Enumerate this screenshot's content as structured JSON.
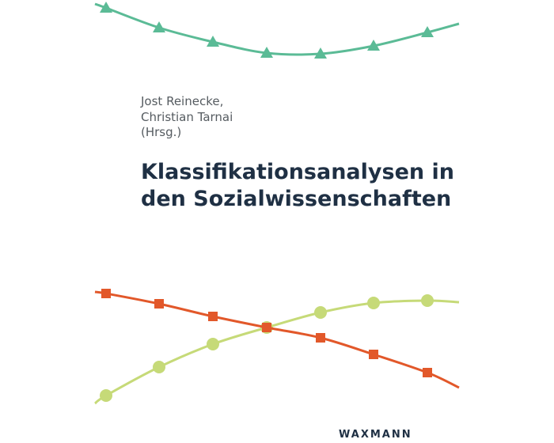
{
  "authors": [
    "Jost Reinecke,",
    "Christian Tarnai",
    "(Hrsg.)"
  ],
  "title": [
    "Klassifikationsanalysen in",
    "den Sozialwissenschaften"
  ],
  "publisher": "WAXMANN"
}
